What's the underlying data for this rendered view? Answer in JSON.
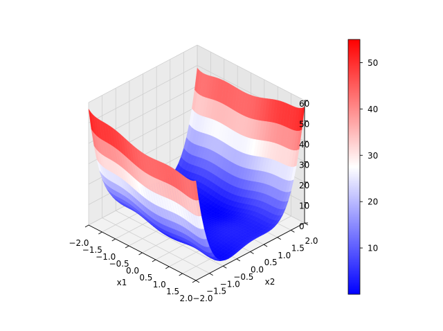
{
  "chart_data": {
    "type": "surface",
    "title": "",
    "xlabel": "x1",
    "ylabel": "x2",
    "zlabel": "",
    "xlim": [
      -2,
      2
    ],
    "ylim": [
      -2,
      2
    ],
    "zlim": [
      0,
      60
    ],
    "x_ticks": [
      "−2.0",
      "−1.5",
      "−1.0",
      "−0.5",
      "0.0",
      "0.5",
      "1.0",
      "1.5",
      "2.0"
    ],
    "x_tick_values": [
      -2,
      -1.5,
      -1,
      -0.5,
      0,
      0.5,
      1,
      1.5,
      2
    ],
    "y_ticks": [
      "−2.0",
      "−1.5",
      "−1.0",
      "−0.5",
      "0.0",
      "0.5",
      "1.0",
      "1.5",
      "2.0"
    ],
    "y_tick_values": [
      -2,
      -1.5,
      -1,
      -0.5,
      0,
      0.5,
      1,
      1.5,
      2
    ],
    "z_ticks": [
      "0",
      "10",
      "20",
      "30",
      "40",
      "50",
      "60"
    ],
    "z_tick_values": [
      0,
      10,
      20,
      30,
      40,
      50,
      60
    ],
    "surface": {
      "function": "six-hump camel: (4 - 2.1*x1^2 + x1^4/3)*x1^2 + x1*x2 + (-4 + 4*x2^2)*x2^2, offset +1.03",
      "offset": 1.03,
      "grid_points": 41
    },
    "colormap": "bwr",
    "colorbar": {
      "range": [
        0,
        55
      ],
      "ticks": [
        "10",
        "20",
        "30",
        "40",
        "50"
      ],
      "tick_values": [
        10,
        20,
        30,
        40,
        50
      ],
      "placement": "right"
    },
    "grid": true
  }
}
